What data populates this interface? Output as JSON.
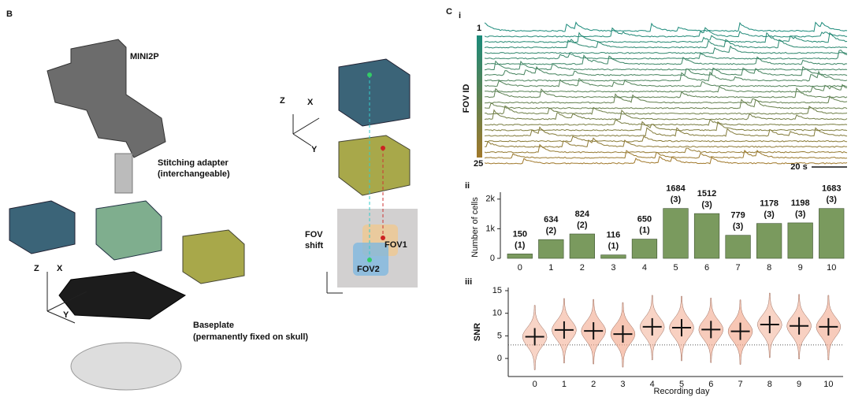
{
  "panel_b": {
    "label": "B",
    "device": "MINI2P",
    "adapter": "Stitching adapter",
    "adapter_note": "(interchangeable)",
    "baseplate": "Baseplate",
    "baseplate_note": "(permanently fixed on skull)",
    "axis_z": "Z",
    "axis_x": "X",
    "axis_y": "Y",
    "fov_shift_1": "FOV",
    "fov_shift_2": "shift",
    "fov1": "FOV1",
    "fov2": "FOV2"
  },
  "panel_c": {
    "label": "C",
    "sub_i": "i",
    "sub_ii": "ii",
    "sub_iii": "iii",
    "fov_first": "1",
    "fov_last": "25",
    "fov_axis": "FOV ID",
    "scale_bar": "20 s"
  },
  "chart_data": [
    {
      "type": "bar",
      "ylabel": "Number of cells",
      "categories": [
        "0",
        "1",
        "2",
        "3",
        "4",
        "5",
        "6",
        "7",
        "8",
        "9",
        "10"
      ],
      "values": [
        150,
        634,
        824,
        116,
        650,
        1684,
        1512,
        779,
        1178,
        1198,
        1683
      ],
      "sessions": [
        "(1)",
        "(2)",
        "(2)",
        "(1)",
        "(1)",
        "(3)",
        "(3)",
        "(3)",
        "(3)",
        "(3)",
        "(3)"
      ],
      "color": "#7a9a5e",
      "ylim": [
        0,
        2100
      ],
      "yticks": [
        0,
        {
          "value": 1000,
          "label": "1k"
        },
        {
          "value": 2000,
          "label": "2k"
        }
      ]
    },
    {
      "type": "violin",
      "ylabel": "SNR",
      "xlabel": "Recording day",
      "categories": [
        "0",
        "1",
        "2",
        "3",
        "4",
        "5",
        "6",
        "7",
        "8",
        "9",
        "10"
      ],
      "medians": [
        4.8,
        6.3,
        6.1,
        5.4,
        7.0,
        6.8,
        6.4,
        6.0,
        7.5,
        7.2,
        7.0
      ],
      "threshold": 3,
      "color": "#f2a98e",
      "ylim": [
        -4,
        15.7
      ],
      "yticks": [
        0,
        5,
        10,
        15
      ]
    }
  ]
}
